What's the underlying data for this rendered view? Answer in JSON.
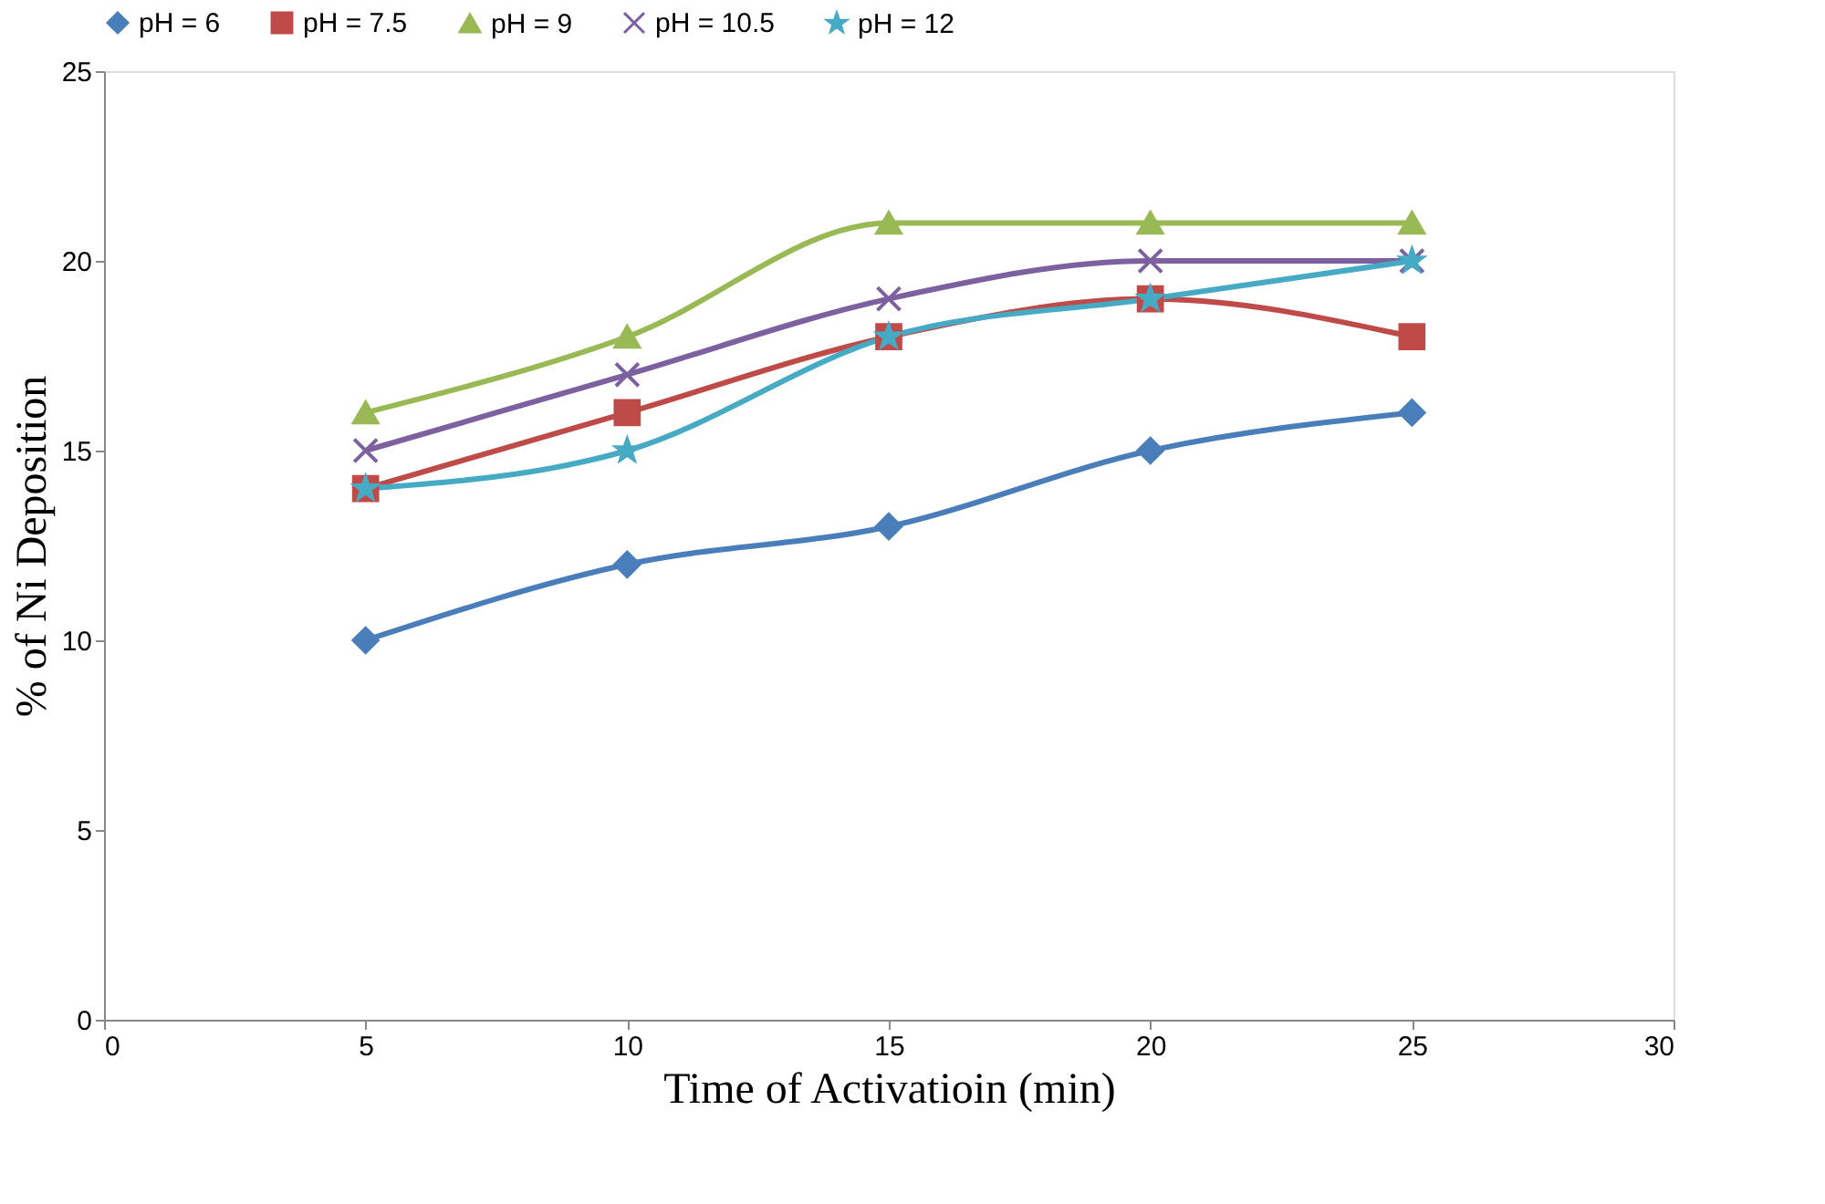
{
  "chart_data": {
    "type": "line",
    "xlabel": "Time of Activatioin (min)",
    "ylabel": "% of Ni Deposition",
    "x": [
      5,
      10,
      15,
      20,
      25
    ],
    "series": [
      {
        "name": "pH = 6",
        "color": "#4a7ebb",
        "marker": "diamond",
        "values": [
          10,
          12,
          13,
          15,
          16
        ]
      },
      {
        "name": "pH = 7.5",
        "color": "#be4b48",
        "marker": "square",
        "values": [
          14,
          16,
          18,
          19,
          18
        ]
      },
      {
        "name": "pH = 9",
        "color": "#98b954",
        "marker": "triangle",
        "values": [
          16,
          18,
          21,
          21,
          21
        ]
      },
      {
        "name": "pH = 10.5",
        "color": "#7d60a0",
        "marker": "cross",
        "values": [
          15,
          17,
          19,
          20,
          20
        ]
      },
      {
        "name": "pH = 12",
        "color": "#46aac5",
        "marker": "star",
        "values": [
          14,
          15,
          18,
          19,
          20
        ]
      }
    ],
    "xlim": [
      0,
      30
    ],
    "xticks": [
      0,
      5,
      10,
      15,
      20,
      25,
      30
    ],
    "ylim": [
      0,
      25
    ],
    "yticks": [
      0,
      5,
      10,
      15,
      20,
      25
    ],
    "grid": false,
    "legend": "top",
    "line_style": "solid"
  }
}
